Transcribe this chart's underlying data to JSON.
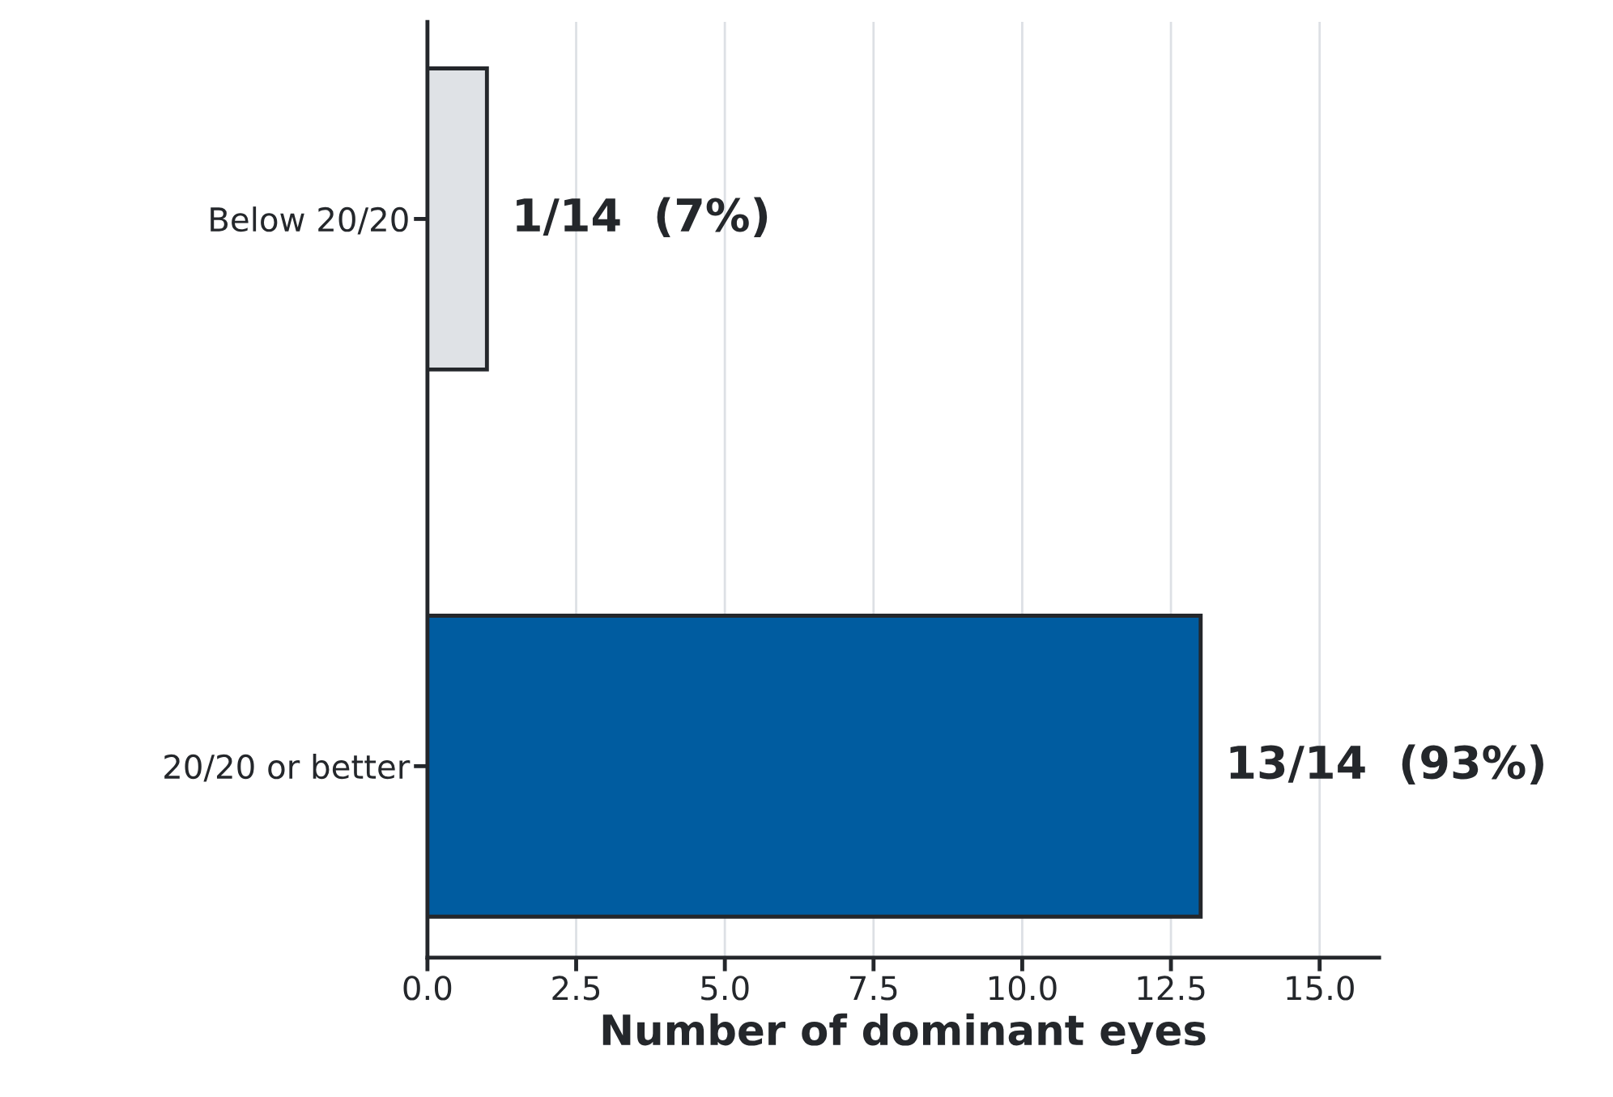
{
  "chart_data": {
    "type": "bar",
    "orientation": "horizontal",
    "xlabel": "Number of dominant eyes",
    "categories": [
      "Below 20/20",
      "20/20 or better"
    ],
    "values": [
      1,
      13
    ],
    "colors": [
      "#dfe2e6",
      "#005ca0"
    ],
    "value_labels": [
      "1/14  (7%)",
      "13/14  (93%)"
    ],
    "xlim": [
      0,
      16
    ],
    "xticks": [
      {
        "value": 0,
        "label": "0.0"
      },
      2.5,
      {
        "value": 5,
        "label": "5.0"
      },
      7.5,
      {
        "value": 10,
        "label": "10.0"
      },
      12.5,
      {
        "value": 15,
        "label": "15.0"
      }
    ],
    "grid": "x",
    "legend": false
  }
}
